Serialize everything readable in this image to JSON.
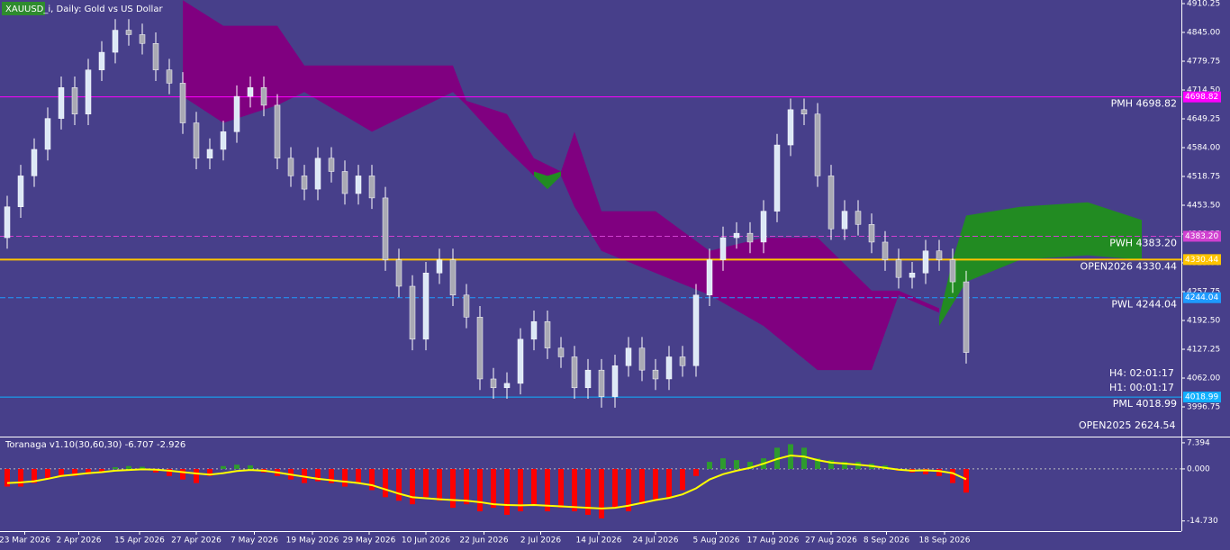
{
  "chart_data": [
    {
      "type": "candlestick",
      "title": "XAUUSD_i, Daily: Gold vs US Dollar",
      "open": [
        4380,
        4450,
        4520,
        4580,
        4650,
        4720,
        4660,
        4760,
        4800,
        4850,
        4840,
        4820,
        4760,
        4730,
        4640,
        4560,
        4580,
        4620,
        4700,
        4720,
        4680,
        4560,
        4520,
        4490,
        4560,
        4530,
        4480,
        4520,
        4470,
        4330,
        4270,
        4150,
        4300,
        4330,
        4250,
        4200,
        4060,
        4040,
        4050,
        4150,
        4190,
        4130,
        4110,
        4040,
        4080,
        4020,
        4090,
        4130,
        4080,
        4060,
        4110,
        4090,
        4250,
        4330,
        4380,
        4390,
        4370,
        4440,
        4590,
        4670,
        4660,
        4520,
        4400,
        4440,
        4410,
        4370,
        4330,
        4290,
        4300,
        4350,
        4330,
        4280
      ],
      "high": [
        4475,
        4545,
        4605,
        4675,
        4745,
        4745,
        4785,
        4825,
        4875,
        4875,
        4865,
        4845,
        4785,
        4755,
        4665,
        4605,
        4645,
        4725,
        4745,
        4745,
        4705,
        4585,
        4545,
        4585,
        4585,
        4555,
        4545,
        4545,
        4495,
        4355,
        4295,
        4325,
        4355,
        4355,
        4275,
        4225,
        4085,
        4075,
        4175,
        4215,
        4215,
        4155,
        4135,
        4105,
        4105,
        4115,
        4155,
        4155,
        4105,
        4135,
        4135,
        4275,
        4355,
        4405,
        4415,
        4415,
        4465,
        4615,
        4695,
        4695,
        4685,
        4545,
        4465,
        4465,
        4435,
        4395,
        4355,
        4325,
        4375,
        4375,
        4355,
        4305
      ],
      "low": [
        4355,
        4425,
        4495,
        4555,
        4625,
        4635,
        4635,
        4735,
        4775,
        4815,
        4795,
        4735,
        4705,
        4615,
        4535,
        4535,
        4555,
        4595,
        4675,
        4655,
        4535,
        4495,
        4465,
        4465,
        4505,
        4455,
        4455,
        4445,
        4305,
        4245,
        4125,
        4125,
        4275,
        4225,
        4175,
        4035,
        4015,
        4015,
        4025,
        4125,
        4105,
        4085,
        4015,
        4015,
        3995,
        3995,
        4065,
        4055,
        4035,
        4035,
        4065,
        4065,
        4225,
        4305,
        4355,
        4345,
        4345,
        4415,
        4565,
        4635,
        4495,
        4375,
        4375,
        4385,
        4345,
        4305,
        4265,
        4265,
        4275,
        4305,
        4255,
        4095
      ],
      "close": [
        4450,
        4520,
        4580,
        4650,
        4720,
        4660,
        4760,
        4800,
        4850,
        4840,
        4820,
        4760,
        4730,
        4640,
        4560,
        4580,
        4620,
        4700,
        4720,
        4680,
        4560,
        4520,
        4490,
        4560,
        4530,
        4480,
        4520,
        4470,
        4330,
        4270,
        4150,
        4300,
        4330,
        4250,
        4200,
        4060,
        4040,
        4050,
        4150,
        4190,
        4130,
        4110,
        4040,
        4080,
        4020,
        4090,
        4130,
        4080,
        4060,
        4110,
        4090,
        4250,
        4330,
        4380,
        4390,
        4370,
        4440,
        4590,
        4670,
        4660,
        4520,
        4400,
        4440,
        4410,
        4370,
        4330,
        4290,
        4300,
        4350,
        4330,
        4280,
        4120
      ],
      "up_color": "#dde8f6",
      "down_color": "#a9a9b4",
      "wick_color": "#ffffff",
      "bearish_cloud": {
        "color": "#800080",
        "x": [
          13,
          16,
          20,
          22,
          27,
          33,
          34,
          37,
          39,
          41,
          42,
          44,
          48,
          52,
          56,
          60,
          64,
          66,
          69
        ],
        "upper": [
          4918,
          4860,
          4860,
          4770,
          4770,
          4770,
          4690,
          4660,
          4560,
          4530,
          4620,
          4440,
          4440,
          4350,
          4380,
          4380,
          4260,
          4260,
          4220
        ],
        "lower": [
          4700,
          4640,
          4680,
          4710,
          4620,
          4710,
          4680,
          4580,
          4520,
          4520,
          4450,
          4350,
          4300,
          4250,
          4180,
          4080,
          4080,
          4250,
          4210
        ]
      },
      "bullish_cloud": {
        "color": "#228b22",
        "x": [
          39,
          40,
          41,
          null,
          69,
          70,
          71,
          75,
          80,
          84
        ],
        "upper": [
          4530,
          4520,
          4530,
          null,
          4200,
          4330,
          4430,
          4450,
          4460,
          4420
        ],
        "lower": [
          4520,
          4490,
          4520,
          null,
          4180,
          4230,
          4280,
          4330,
          4340,
          4330
        ]
      },
      "levels": [
        {
          "label": "PMH 4698.82",
          "value": 4698.82,
          "axis_label": "4698.82",
          "color": "#ff00ff",
          "dashed": false
        },
        {
          "label": "PWH 4383.20",
          "value": 4383.2,
          "axis_label": "4383.20",
          "color": "#d040d0",
          "dashed": true
        },
        {
          "label": "OPEN2026 4330.44",
          "value": 4330.44,
          "axis_label": "4330.44",
          "color": "#ffc400",
          "dashed": false
        },
        {
          "label": "PWL 4244.04",
          "value": 4244.04,
          "axis_label": "4244.04",
          "color": "#1e9bff",
          "dashed": true
        },
        {
          "label": "PML 4018.99",
          "value": 4018.99,
          "axis_label": "4018.99",
          "color": "#10b0ff",
          "dashed": false
        }
      ],
      "annotations": [
        "H4: 02:01:17",
        "H1: 00:01:17",
        "OPEN2025 2624.54"
      ],
      "ylim": [
        3931.5,
        4918.4
      ],
      "yticks": [
        {
          "value": 4910.25,
          "label": "4910.25"
        },
        {
          "value": 4845,
          "label": "4845.00"
        },
        {
          "value": 4779.75,
          "label": "4779.75"
        },
        {
          "value": 4714.5,
          "label": "4714.50"
        },
        {
          "value": 4649.25,
          "label": "4649.25"
        },
        {
          "value": 4584,
          "label": "4584.00"
        },
        {
          "value": 4518.75,
          "label": "4518.75"
        },
        {
          "value": 4453.5,
          "label": "4453.50"
        },
        {
          "value": 4388.25,
          "label": "4388.25"
        },
        {
          "value": 4323,
          "label": "4323.00"
        },
        {
          "value": 4257.75,
          "label": "4257.75"
        },
        {
          "value": 4192.5,
          "label": "4192.50"
        },
        {
          "value": 4127.25,
          "label": "4127.25"
        },
        {
          "value": 4062,
          "label": "4062.00"
        },
        {
          "value": 3996.75,
          "label": "3996.75"
        }
      ],
      "xticks": [
        {
          "value": 1.3,
          "label": "23 Mar 2026"
        },
        {
          "value": 5.3,
          "label": "2 Apr 2026"
        },
        {
          "value": 9.8,
          "label": "15 Apr 2026"
        },
        {
          "value": 14,
          "label": "27 Apr 2026"
        },
        {
          "value": 18.3,
          "label": "7 May 2026"
        },
        {
          "value": 22.6,
          "label": "19 May 2026"
        },
        {
          "value": 26.8,
          "label": "29 May 2026"
        },
        {
          "value": 31,
          "label": "10 Jun 2026"
        },
        {
          "value": 35.3,
          "label": "22 Jun 2026"
        },
        {
          "value": 39.5,
          "label": "2 Jul 2026"
        },
        {
          "value": 43.8,
          "label": "14 Jul 2026"
        },
        {
          "value": 48,
          "label": "24 Jul 2026"
        },
        {
          "value": 52.5,
          "label": "5 Aug 2026"
        },
        {
          "value": 56.7,
          "label": "17 Aug 2026"
        },
        {
          "value": 61,
          "label": "27 Aug 2026"
        },
        {
          "value": 65.1,
          "label": "8 Sep 2026"
        },
        {
          "value": 69.4,
          "label": "18 Sep 2026"
        }
      ]
    },
    {
      "type": "histogram-line",
      "title": "Toranaga v1.10(30,60,30) -6.707 -2.926",
      "values": [
        -5,
        -5,
        -4,
        -3,
        -2,
        -2,
        -1.5,
        -1,
        0.5,
        0.8,
        0.6,
        -1,
        -2,
        -3,
        -4,
        -2,
        0.8,
        1.2,
        1,
        -1,
        -2,
        -3,
        -4,
        -3.5,
        -4,
        -5,
        -4,
        -6,
        -8,
        -9,
        -10,
        -8,
        -9,
        -11,
        -10,
        -12,
        -11,
        -13,
        -12,
        -10,
        -12,
        -11,
        -12,
        -13,
        -14,
        -11,
        -12,
        -10,
        -9,
        -8,
        -6,
        -2,
        2,
        3,
        2.5,
        2,
        3,
        6,
        7,
        6,
        3,
        2.5,
        2,
        2,
        1.5,
        1,
        -0.5,
        -1,
        -1.5,
        -2,
        -4,
        -6.707
      ],
      "line": [
        -4,
        -3.8,
        -3.5,
        -2.8,
        -2,
        -1.6,
        -1.2,
        -0.9,
        -0.5,
        -0.3,
        -0.1,
        -0.2,
        -0.5,
        -0.9,
        -1.3,
        -1.6,
        -1.2,
        -0.6,
        -0.3,
        -0.5,
        -1,
        -1.6,
        -2.2,
        -2.8,
        -3.2,
        -3.6,
        -4,
        -4.6,
        -5.8,
        -7,
        -8,
        -8.3,
        -8.6,
        -8.8,
        -9,
        -9.4,
        -10,
        -10.2,
        -10.3,
        -10.2,
        -10.4,
        -10.6,
        -10.8,
        -11,
        -11.2,
        -11,
        -10.4,
        -9.6,
        -8.8,
        -8.2,
        -7.2,
        -5.5,
        -3,
        -1.5,
        -0.5,
        0.3,
        1.5,
        2.8,
        3.8,
        3.5,
        2.5,
        1.8,
        1.5,
        1.2,
        0.8,
        0.3,
        -0.2,
        -0.5,
        -0.4,
        -0.6,
        -1.2,
        -2.926
      ],
      "negative_color": "#ff0000",
      "positive_color": "#c8c8c8",
      "strong_color": "#2e9b2e",
      "line_color": "#ffff00",
      "ylim": [
        -17.6,
        8.9
      ],
      "yticks": [
        {
          "value": 7.394,
          "label": "7.394"
        },
        {
          "value": 0,
          "label": "0.000"
        },
        {
          "value": -14.73,
          "label": "-14.730"
        }
      ]
    }
  ]
}
